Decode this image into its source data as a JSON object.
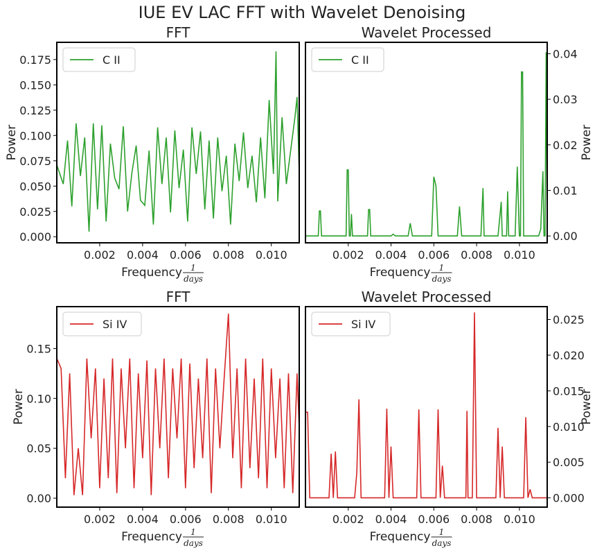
{
  "figure": {
    "title": "IUE EV LAC FFT with Wavelet Denoising",
    "colors": {
      "green": "#2ca02c",
      "red": "#d62728"
    }
  },
  "chart_data": [
    {
      "type": "line",
      "title": "FFT",
      "xlabel": "Frequency",
      "xlabel_frac": {
        "num": "1",
        "den": "days"
      },
      "ylabel": "Power",
      "ylabel_side": "left",
      "xlim": [
        0.0,
        0.0113
      ],
      "ylim": [
        -0.006,
        0.192
      ],
      "xticks": [
        "0.002",
        "0.004",
        "0.006",
        "0.008",
        "0.010"
      ],
      "xtick_values": [
        0.002,
        0.004,
        0.006,
        0.008,
        0.01
      ],
      "yticks": [
        "0.000",
        "0.025",
        "0.050",
        "0.075",
        "0.100",
        "0.125",
        "0.150",
        "0.175"
      ],
      "ytick_values": [
        0.0,
        0.025,
        0.05,
        0.075,
        0.1,
        0.125,
        0.15,
        0.175
      ],
      "legend": "top-left",
      "grid": false,
      "series": [
        {
          "name": "C II",
          "color": "#2ca02c",
          "x": [
            0.0,
            0.0003,
            0.0005,
            0.0007,
            0.0009,
            0.0011,
            0.0013,
            0.0015,
            0.0017,
            0.0019,
            0.0021,
            0.0023,
            0.0025,
            0.0027,
            0.0029,
            0.0031,
            0.0033,
            0.0035,
            0.0037,
            0.0039,
            0.0041,
            0.0043,
            0.0045,
            0.0047,
            0.0049,
            0.0051,
            0.0053,
            0.0055,
            0.0057,
            0.0059,
            0.0061,
            0.0063,
            0.0065,
            0.0067,
            0.0069,
            0.0071,
            0.0073,
            0.0075,
            0.0077,
            0.0079,
            0.0081,
            0.0083,
            0.0085,
            0.0087,
            0.0089,
            0.0091,
            0.0093,
            0.0095,
            0.0097,
            0.0099,
            0.0101,
            0.01022,
            0.0103,
            0.0105,
            0.0107,
            0.0109,
            0.0111,
            0.0112,
            0.0113
          ],
          "y": [
            0.071,
            0.052,
            0.095,
            0.03,
            0.112,
            0.06,
            0.098,
            0.005,
            0.112,
            0.027,
            0.11,
            0.015,
            0.092,
            0.058,
            0.047,
            0.109,
            0.025,
            0.063,
            0.09,
            0.036,
            0.031,
            0.085,
            0.012,
            0.108,
            0.052,
            0.098,
            0.024,
            0.105,
            0.048,
            0.086,
            0.015,
            0.108,
            0.062,
            0.104,
            0.027,
            0.095,
            0.018,
            0.098,
            0.045,
            0.08,
            0.012,
            0.092,
            0.055,
            0.103,
            0.048,
            0.08,
            0.034,
            0.098,
            0.038,
            0.135,
            0.062,
            0.183,
            0.035,
            0.118,
            0.052,
            0.085,
            0.118,
            0.138,
            0.063
          ]
        }
      ]
    },
    {
      "type": "line",
      "title": "Wavelet Processed",
      "xlabel": "Frequency",
      "xlabel_frac": {
        "num": "1",
        "den": "days"
      },
      "ylabel": "Power",
      "ylabel_side": "right",
      "xlim": [
        0.0,
        0.0113
      ],
      "ylim": [
        -0.0015,
        0.0425
      ],
      "xticks": [
        "0.002",
        "0.004",
        "0.006",
        "0.008",
        "0.010"
      ],
      "xtick_values": [
        0.002,
        0.004,
        0.006,
        0.008,
        0.01
      ],
      "yticks": [
        "0.00",
        "0.01",
        "0.02",
        "0.03",
        "0.04"
      ],
      "ytick_values": [
        0.0,
        0.01,
        0.02,
        0.03,
        0.04
      ],
      "legend": "top-left",
      "grid": false,
      "series": [
        {
          "name": "C II",
          "color": "#2ca02c",
          "x": [
            0.0,
            0.0006,
            0.00065,
            0.0007,
            0.00075,
            0.0019,
            0.00195,
            0.002,
            0.00205,
            0.0021,
            0.00215,
            0.0022,
            0.0029,
            0.00295,
            0.003,
            0.00305,
            0.004,
            0.0041,
            0.0042,
            0.0048,
            0.0049,
            0.005,
            0.0059,
            0.006,
            0.0061,
            0.0062,
            0.0071,
            0.0072,
            0.0073,
            0.0082,
            0.0083,
            0.00835,
            0.009,
            0.00915,
            0.0092,
            0.0094,
            0.00945,
            0.0095,
            0.0098,
            0.0099,
            0.01,
            0.01005,
            0.0101,
            0.01015,
            0.0102,
            0.0103,
            0.0109,
            0.011,
            0.0111,
            0.01115,
            0.0112,
            0.01125,
            0.0113
          ],
          "y": [
            0.0,
            0.0,
            0.0055,
            0.0055,
            0.0,
            0.0,
            0.0145,
            0.0145,
            0.0,
            0.0,
            0.0048,
            0.0,
            0.0,
            0.0058,
            0.0058,
            0.0,
            0.0,
            0.0004,
            0.0,
            0.0,
            0.0028,
            0.0,
            0.0,
            0.013,
            0.011,
            0.0,
            0.0,
            0.0065,
            0.0,
            0.0,
            0.0105,
            0.0,
            0.0,
            0.0075,
            0.0,
            0.0,
            0.0098,
            0.0,
            0.0,
            0.0152,
            0.0,
            0.0,
            0.036,
            0.036,
            0.0,
            0.0,
            0.0,
            0.0015,
            0.0142,
            0.0,
            0.0,
            0.0403,
            0.0
          ]
        }
      ]
    },
    {
      "type": "line",
      "title": "FFT",
      "xlabel": "Frequency",
      "xlabel_frac": {
        "num": "1",
        "den": "days"
      },
      "ylabel": "Power",
      "ylabel_side": "left",
      "xlim": [
        0.0,
        0.0113
      ],
      "ylim": [
        -0.009,
        0.192
      ],
      "xticks": [
        "0.002",
        "0.004",
        "0.006",
        "0.008",
        "0.010"
      ],
      "xtick_values": [
        0.002,
        0.004,
        0.006,
        0.008,
        0.01
      ],
      "yticks": [
        "0.00",
        "0.05",
        "0.10",
        "0.15"
      ],
      "ytick_values": [
        0.0,
        0.05,
        0.1,
        0.15
      ],
      "legend": "top-left",
      "grid": false,
      "series": [
        {
          "name": "Si IV",
          "color": "#d62728",
          "x": [
            0.0,
            0.0002,
            0.0004,
            0.0006,
            0.0008,
            0.001,
            0.0012,
            0.0014,
            0.0016,
            0.0018,
            0.002,
            0.0022,
            0.0024,
            0.0026,
            0.0028,
            0.003,
            0.0032,
            0.0034,
            0.0036,
            0.0038,
            0.004,
            0.0042,
            0.0044,
            0.0046,
            0.0048,
            0.005,
            0.0052,
            0.0054,
            0.0056,
            0.0058,
            0.006,
            0.0062,
            0.0064,
            0.0066,
            0.0068,
            0.007,
            0.0072,
            0.0074,
            0.0076,
            0.0078,
            0.008,
            0.0082,
            0.0084,
            0.0086,
            0.0088,
            0.009,
            0.0092,
            0.0094,
            0.0096,
            0.0098,
            0.01,
            0.0102,
            0.0104,
            0.0106,
            0.0108,
            0.011,
            0.0112,
            0.0113
          ],
          "y": [
            0.14,
            0.13,
            0.02,
            0.125,
            0.003,
            0.05,
            0.003,
            0.14,
            0.06,
            0.13,
            0.01,
            0.12,
            0.02,
            0.14,
            0.005,
            0.13,
            0.05,
            0.14,
            0.01,
            0.125,
            0.04,
            0.138,
            0.003,
            0.13,
            0.05,
            0.14,
            0.02,
            0.13,
            0.06,
            0.14,
            0.01,
            0.135,
            0.03,
            0.12,
            0.04,
            0.14,
            0.005,
            0.13,
            0.05,
            0.12,
            0.185,
            0.04,
            0.13,
            0.01,
            0.14,
            0.03,
            0.12,
            0.02,
            0.14,
            0.01,
            0.13,
            0.04,
            0.12,
            0.01,
            0.125,
            0.005,
            0.125,
            0.07
          ]
        }
      ]
    },
    {
      "type": "line",
      "title": "Wavelet Processed",
      "xlabel": "Frequency",
      "xlabel_frac": {
        "num": "1",
        "den": "days"
      },
      "ylabel": "Power",
      "ylabel_side": "right",
      "xlim": [
        0.0,
        0.0113
      ],
      "ylim": [
        -0.0013,
        0.0268
      ],
      "xticks": [
        "0.002",
        "0.004",
        "0.006",
        "0.008",
        "0.010"
      ],
      "xtick_values": [
        0.002,
        0.004,
        0.006,
        0.008,
        0.01
      ],
      "yticks": [
        "0.000",
        "0.005",
        "0.010",
        "0.015",
        "0.020",
        "0.025"
      ],
      "ytick_values": [
        0.0,
        0.005,
        0.01,
        0.015,
        0.02,
        0.025
      ],
      "legend": "top-left",
      "grid": false,
      "series": [
        {
          "name": "Si IV",
          "color": "#d62728",
          "x": [
            0.0,
            0.0001,
            0.0002,
            0.0011,
            0.0012,
            0.0013,
            0.0014,
            0.0015,
            0.0016,
            0.0023,
            0.0024,
            0.0025,
            0.0026,
            0.0027,
            0.0037,
            0.0038,
            0.0039,
            0.004,
            0.0041,
            0.0052,
            0.0053,
            0.0054,
            0.0061,
            0.0062,
            0.0063,
            0.0064,
            0.0065,
            0.0075,
            0.00755,
            0.0076,
            0.0078,
            0.0079,
            0.008,
            0.0081,
            0.0089,
            0.009,
            0.0091,
            0.0092,
            0.0093,
            0.0102,
            0.0103,
            0.0104,
            0.0105,
            0.0106,
            0.0107,
            0.0113
          ],
          "y": [
            0.012,
            0.012,
            0.0,
            0.0,
            0.0062,
            0.0,
            0.0065,
            0.0,
            0.0,
            0.0,
            0.0035,
            0.0138,
            0.0,
            0.0,
            0.0,
            0.0125,
            0.0,
            0.0072,
            0.0,
            0.0,
            0.0124,
            0.0,
            0.0,
            0.0124,
            0.0,
            0.0045,
            0.0,
            0.0,
            0.0122,
            0.0,
            0.0,
            0.026,
            0.0,
            0.0,
            0.0,
            0.0098,
            0.0,
            0.0072,
            0.0,
            0.0,
            0.0113,
            0.0,
            0.0012,
            0.0,
            0.0,
            0.0
          ]
        }
      ]
    }
  ]
}
